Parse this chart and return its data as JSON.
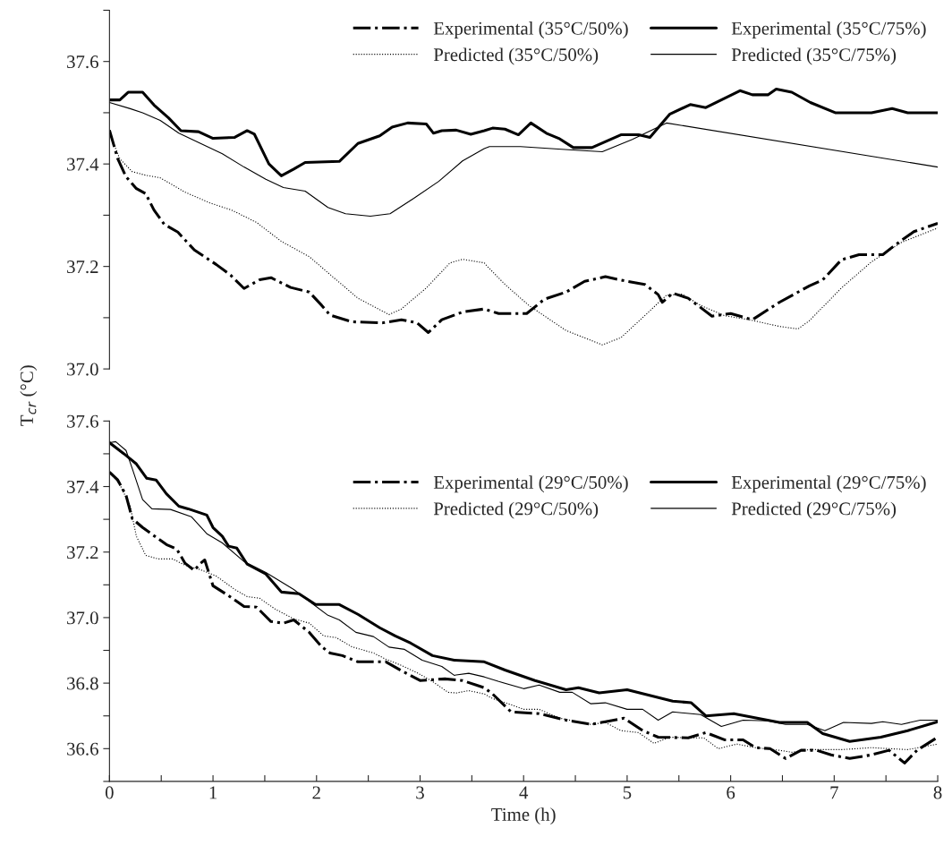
{
  "chart_data": [
    {
      "type": "line",
      "ylabel": "T$_{cr}$ (°C)",
      "xlim": [
        0,
        8
      ],
      "ylim": [
        37.0,
        37.7
      ],
      "tick_labels": "y",
      "legend": "top right",
      "yticks": [
        {
          "value": 37.0,
          "label": "37.0"
        },
        {
          "value": 37.1,
          "label": null
        },
        37.2,
        {
          "value": 37.3,
          "label": null
        },
        37.4,
        {
          "value": 37.5,
          "label": null
        },
        37.6,
        {
          "value": 37.7,
          "label": null
        }
      ],
      "series": [
        {
          "name": "Experimental (35°C/50%)",
          "color": "#000000",
          "line_style": "dashdot",
          "x": [
            0,
            0.08,
            0.16,
            0.26,
            0.35,
            0.43,
            0.53,
            0.66,
            0.82,
            1.03,
            1.17,
            1.3,
            1.45,
            1.56,
            1.75,
            1.93,
            2.05,
            2.13,
            2.34,
            2.64,
            2.82,
            2.97,
            3.08,
            3.21,
            3.41,
            3.62,
            3.76,
            4.03,
            4.2,
            4.41,
            4.59,
            4.79,
            5.0,
            5.17,
            5.3,
            5.34,
            5.44,
            5.59,
            5.82,
            6.0,
            6.21,
            6.47,
            6.76,
            6.89,
            7.07,
            7.24,
            7.47,
            7.59,
            7.77,
            8.0
          ],
          "values": [
            37.466,
            37.41,
            37.375,
            37.352,
            37.342,
            37.31,
            37.282,
            37.267,
            37.232,
            37.204,
            37.183,
            37.157,
            37.174,
            37.178,
            37.159,
            37.15,
            37.124,
            37.105,
            37.092,
            37.09,
            37.096,
            37.09,
            37.071,
            37.096,
            37.111,
            37.117,
            37.108,
            37.108,
            37.136,
            37.15,
            37.171,
            37.18,
            37.171,
            37.165,
            37.145,
            37.13,
            37.148,
            37.138,
            37.103,
            37.108,
            37.096,
            37.13,
            37.162,
            37.174,
            37.213,
            37.223,
            37.223,
            37.242,
            37.268,
            37.284
          ]
        },
        {
          "name": "Experimental (35°C/75%)",
          "color": "#000000",
          "line_style": "solid",
          "x": [
            0,
            0.1,
            0.18,
            0.32,
            0.43,
            0.57,
            0.69,
            0.86,
            1.0,
            1.21,
            1.33,
            1.4,
            1.54,
            1.66,
            1.78,
            1.89,
            2.22,
            2.4,
            2.61,
            2.73,
            2.88,
            3.06,
            3.13,
            3.21,
            3.35,
            3.49,
            3.62,
            3.7,
            3.82,
            3.95,
            4.07,
            4.22,
            4.34,
            4.48,
            4.66,
            4.94,
            5.11,
            5.22,
            5.41,
            5.61,
            5.76,
            6.09,
            6.21,
            6.36,
            6.44,
            6.59,
            6.77,
            7.01,
            7.36,
            7.56,
            7.71,
            8.0
          ],
          "values": [
            37.525,
            37.525,
            37.54,
            37.54,
            37.515,
            37.49,
            37.465,
            37.463,
            37.45,
            37.452,
            37.465,
            37.458,
            37.4,
            37.377,
            37.39,
            37.403,
            37.405,
            37.44,
            37.455,
            37.472,
            37.48,
            37.478,
            37.46,
            37.465,
            37.466,
            37.458,
            37.465,
            37.47,
            37.468,
            37.457,
            37.48,
            37.46,
            37.45,
            37.432,
            37.432,
            37.457,
            37.457,
            37.452,
            37.497,
            37.516,
            37.51,
            37.543,
            37.535,
            37.535,
            37.546,
            37.54,
            37.52,
            37.5,
            37.5,
            37.508,
            37.5,
            37.5
          ]
        },
        {
          "name": "Predicted (35°C/50%)",
          "color": "#000000",
          "line_style": "dotted",
          "x": [
            0,
            0.1,
            0.22,
            0.35,
            0.49,
            0.73,
            0.97,
            1.18,
            1.42,
            1.66,
            1.93,
            2.19,
            2.4,
            2.7,
            2.82,
            3.06,
            3.29,
            3.41,
            3.62,
            3.65,
            3.82,
            4.05,
            4.41,
            4.76,
            4.94,
            5.17,
            5.38,
            5.53,
            5.71,
            5.94,
            6.18,
            6.47,
            6.65,
            6.76,
            7.07,
            7.36,
            7.65,
            8.0
          ],
          "values": [
            37.46,
            37.41,
            37.385,
            37.378,
            37.373,
            37.345,
            37.324,
            37.31,
            37.286,
            37.249,
            37.219,
            37.174,
            37.138,
            37.106,
            37.117,
            37.158,
            37.207,
            37.214,
            37.207,
            37.2,
            37.165,
            37.124,
            37.075,
            37.047,
            37.061,
            37.104,
            37.144,
            37.146,
            37.124,
            37.104,
            37.096,
            37.083,
            37.078,
            37.094,
            37.158,
            37.209,
            37.247,
            37.275
          ]
        },
        {
          "name": "Predicted (35°C/75%)",
          "color": "#000000",
          "line_style": "solid",
          "x": [
            0,
            0.2,
            0.32,
            0.49,
            0.67,
            0.88,
            1.09,
            1.3,
            1.51,
            1.68,
            1.89,
            2.11,
            2.28,
            2.52,
            2.71,
            2.94,
            3.18,
            3.41,
            3.62,
            3.67,
            3.97,
            4.5,
            4.76,
            5.05,
            5.38,
            8.0
          ],
          "values": [
            37.52,
            37.508,
            37.5,
            37.485,
            37.46,
            37.44,
            37.42,
            37.394,
            37.37,
            37.354,
            37.347,
            37.315,
            37.303,
            37.298,
            37.303,
            37.333,
            37.366,
            37.406,
            37.43,
            37.434,
            37.434,
            37.427,
            37.424,
            37.448,
            37.48,
            37.394
          ]
        }
      ]
    },
    {
      "type": "line",
      "xlabel": "Time (h)",
      "xlim": [
        0,
        8
      ],
      "ylim": [
        36.5,
        37.6
      ],
      "legend": "top right",
      "xticks": [
        0,
        {
          "value": 0.5,
          "label": null
        },
        1,
        {
          "value": 1.5,
          "label": null
        },
        2,
        {
          "value": 2.5,
          "label": null
        },
        3,
        {
          "value": 3.5,
          "label": null
        },
        4,
        {
          "value": 4.5,
          "label": null
        },
        5,
        {
          "value": 5.5,
          "label": null
        },
        6,
        {
          "value": 6.5,
          "label": null
        },
        7,
        {
          "value": 7.5,
          "label": null
        },
        8
      ],
      "yticks": [
        {
          "value": 36.5,
          "label": null
        },
        36.6,
        {
          "value": 36.7,
          "label": null
        },
        36.8,
        {
          "value": 36.9,
          "label": null
        },
        {
          "value": 37.0,
          "label": "37.0"
        },
        {
          "value": 37.1,
          "label": null
        },
        37.2,
        {
          "value": 37.3,
          "label": null
        },
        37.4,
        {
          "value": 37.5,
          "label": null
        },
        37.6
      ],
      "series": [
        {
          "name": "Experimental (29°C/50%)",
          "color": "#000000",
          "line_style": "dashdot",
          "x": [
            0,
            0.08,
            0.16,
            0.22,
            0.32,
            0.43,
            0.55,
            0.65,
            0.73,
            0.82,
            0.88,
            0.92,
            1.0,
            1.15,
            1.3,
            1.42,
            1.56,
            1.68,
            1.78,
            1.93,
            2.05,
            2.13,
            2.25,
            2.4,
            2.67,
            2.82,
            3.0,
            3.24,
            3.41,
            3.62,
            3.7,
            3.88,
            4.15,
            4.41,
            4.65,
            4.79,
            4.97,
            5.15,
            5.3,
            5.59,
            5.76,
            5.94,
            6.12,
            6.24,
            6.38,
            6.53,
            6.68,
            6.83,
            6.97,
            7.15,
            7.36,
            7.53,
            7.68,
            7.8,
            8.0
          ],
          "values": [
            37.444,
            37.42,
            37.373,
            37.302,
            37.275,
            37.25,
            37.223,
            37.209,
            37.166,
            37.144,
            37.166,
            37.176,
            37.097,
            37.067,
            37.034,
            37.032,
            36.988,
            36.983,
            36.993,
            36.955,
            36.911,
            36.892,
            36.884,
            36.865,
            36.865,
            36.838,
            36.808,
            36.813,
            36.808,
            36.786,
            36.767,
            36.712,
            36.707,
            36.687,
            36.674,
            36.682,
            36.693,
            36.655,
            36.635,
            36.633,
            36.649,
            36.627,
            36.627,
            36.603,
            36.6,
            36.57,
            36.595,
            36.595,
            36.581,
            36.57,
            36.581,
            36.595,
            36.556,
            36.595,
            36.635
          ]
        },
        {
          "name": "Experimental (29°C/75%)",
          "color": "#000000",
          "line_style": "solid",
          "x": [
            0,
            0.14,
            0.26,
            0.36,
            0.45,
            0.55,
            0.67,
            0.76,
            0.94,
            1.0,
            1.09,
            1.15,
            1.23,
            1.33,
            1.51,
            1.66,
            1.83,
            1.99,
            2.22,
            2.4,
            2.61,
            2.76,
            2.91,
            3.12,
            3.33,
            3.62,
            3.82,
            4.11,
            4.41,
            4.53,
            4.73,
            5.0,
            5.44,
            5.62,
            5.76,
            6.03,
            6.47,
            6.74,
            6.89,
            7.15,
            7.45,
            7.71,
            8.0
          ],
          "values": [
            37.534,
            37.5,
            37.469,
            37.425,
            37.42,
            37.378,
            37.34,
            37.332,
            37.313,
            37.275,
            37.248,
            37.218,
            37.212,
            37.163,
            37.133,
            37.078,
            37.073,
            37.04,
            37.04,
            37.01,
            36.969,
            36.944,
            36.922,
            36.884,
            36.87,
            36.865,
            36.84,
            36.808,
            36.78,
            36.786,
            36.77,
            36.78,
            36.745,
            36.74,
            36.7,
            36.707,
            36.68,
            36.68,
            36.646,
            36.622,
            36.635,
            36.655,
            36.682
          ]
        },
        {
          "name": "Predicted (29°C/50%)",
          "color": "#000000",
          "line_style": "dotted",
          "x": [
            0,
            0.1,
            0.2,
            0.26,
            0.35,
            0.47,
            0.61,
            0.73,
            0.88,
            1.03,
            1.21,
            1.33,
            1.45,
            1.6,
            1.78,
            1.93,
            2.07,
            2.19,
            2.34,
            2.55,
            2.67,
            2.82,
            2.97,
            3.12,
            3.27,
            3.35,
            3.47,
            3.62,
            3.7,
            3.88,
            4.0,
            4.15,
            4.35,
            4.65,
            4.79,
            4.94,
            5.11,
            5.26,
            5.41,
            5.59,
            5.74,
            5.88,
            6.06,
            6.24,
            6.47,
            6.59,
            6.76,
            7.07,
            7.36,
            7.71,
            8.0
          ],
          "values": [
            37.444,
            37.406,
            37.34,
            37.248,
            37.19,
            37.179,
            37.179,
            37.16,
            37.146,
            37.127,
            37.086,
            37.064,
            37.059,
            37.026,
            36.996,
            36.983,
            36.944,
            36.939,
            36.911,
            36.892,
            36.873,
            36.854,
            36.832,
            36.805,
            36.772,
            36.77,
            36.777,
            36.767,
            36.753,
            36.734,
            36.72,
            36.72,
            36.693,
            36.674,
            36.68,
            36.655,
            36.649,
            36.616,
            36.635,
            36.633,
            36.633,
            36.6,
            36.614,
            36.603,
            36.595,
            36.589,
            36.597,
            36.597,
            36.603,
            36.597,
            36.614
          ]
        },
        {
          "name": "Predicted (29°C/75%)",
          "color": "#000000",
          "line_style": "solid",
          "x": [
            0,
            0.06,
            0.16,
            0.22,
            0.32,
            0.41,
            0.59,
            0.79,
            0.94,
            1.09,
            1.3,
            1.51,
            1.78,
            1.95,
            2.11,
            2.22,
            2.38,
            2.55,
            2.7,
            2.85,
            3.02,
            3.21,
            3.33,
            3.47,
            3.62,
            3.76,
            4.0,
            4.15,
            4.35,
            4.47,
            4.65,
            4.79,
            5.0,
            5.15,
            5.3,
            5.44,
            5.71,
            5.91,
            6.12,
            6.36,
            6.53,
            6.74,
            6.91,
            7.09,
            7.36,
            7.47,
            7.65,
            7.83,
            8.0
          ],
          "values": [
            37.534,
            37.537,
            37.51,
            37.455,
            37.36,
            37.332,
            37.33,
            37.308,
            37.256,
            37.228,
            37.171,
            37.138,
            37.086,
            37.045,
            37.007,
            36.993,
            36.955,
            36.942,
            36.91,
            36.903,
            36.87,
            36.851,
            36.824,
            36.83,
            36.819,
            36.805,
            36.783,
            36.794,
            36.772,
            36.772,
            36.737,
            36.74,
            36.72,
            36.72,
            36.687,
            36.712,
            36.704,
            36.668,
            36.687,
            36.685,
            36.674,
            36.674,
            36.655,
            36.68,
            36.677,
            36.682,
            36.674,
            36.687,
            36.687
          ]
        }
      ]
    }
  ]
}
